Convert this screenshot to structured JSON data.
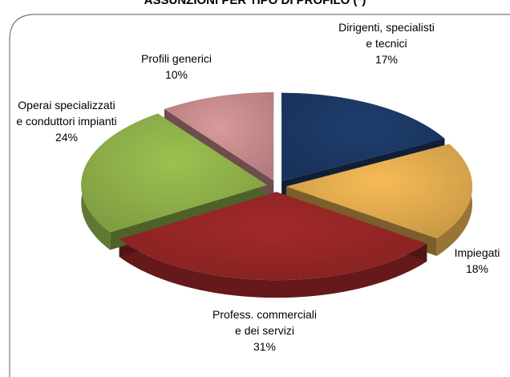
{
  "chart_data": {
    "type": "pie",
    "title": "ASSUNZIONI PER TIPO DI PROFILO (*)",
    "categories": [
      "Dirigenti, specialisti e tecnici",
      "Impiegati",
      "Profess. commerciali e dei servizi",
      "Operai specializzati e conduttori impianti",
      "Profili generici"
    ],
    "values": [
      17,
      18,
      31,
      24,
      10
    ],
    "value_labels": [
      "17%",
      "18%",
      "31%",
      "24%",
      "10%"
    ],
    "colors": [
      "#1f3d6e",
      "#f6bb55",
      "#a3292a",
      "#9cc150",
      "#d9999a"
    ]
  }
}
